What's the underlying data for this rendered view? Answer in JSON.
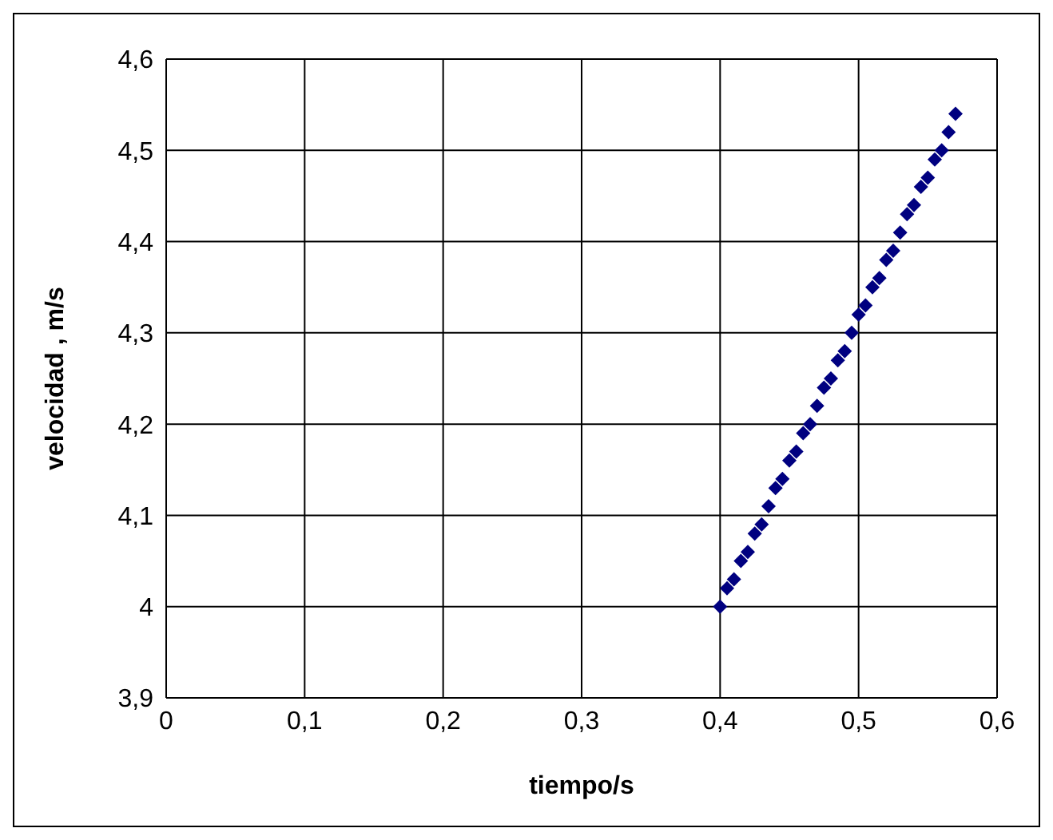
{
  "chart_data": {
    "type": "scatter",
    "xlabel": "tiempo/s",
    "ylabel": "velocidad , m/s",
    "x": [
      0.4,
      0.405,
      0.41,
      0.415,
      0.42,
      0.425,
      0.43,
      0.435,
      0.44,
      0.445,
      0.45,
      0.455,
      0.46,
      0.465,
      0.47,
      0.475,
      0.48,
      0.485,
      0.49,
      0.495,
      0.5,
      0.505,
      0.51,
      0.515,
      0.52,
      0.525,
      0.53,
      0.535,
      0.54,
      0.545,
      0.55,
      0.555,
      0.56,
      0.565,
      0.57
    ],
    "series": [
      {
        "color": "#000080",
        "values": [
          4.0,
          4.02,
          4.03,
          4.05,
          4.06,
          4.08,
          4.09,
          4.11,
          4.13,
          4.14,
          4.16,
          4.17,
          4.19,
          4.2,
          4.22,
          4.24,
          4.25,
          4.27,
          4.28,
          4.3,
          4.32,
          4.33,
          4.35,
          4.36,
          4.38,
          4.39,
          4.41,
          4.43,
          4.44,
          4.46,
          4.47,
          4.49,
          4.5,
          4.52,
          4.54
        ]
      }
    ],
    "xlim": [
      0,
      0.6
    ],
    "xticks": [
      0,
      {
        "value": 0.1,
        "label": "0,1"
      },
      {
        "value": 0.2,
        "label": "0,2"
      },
      {
        "value": 0.3,
        "label": "0,3"
      },
      {
        "value": 0.4,
        "label": "0,4"
      },
      {
        "value": 0.5,
        "label": "0,5"
      },
      {
        "value": 0.6,
        "label": "0,6"
      }
    ],
    "ylim": [
      3.9,
      4.6
    ],
    "yticks": [
      {
        "value": 3.9,
        "label": "3,9"
      },
      4,
      {
        "value": 4.1,
        "label": "4,1"
      },
      {
        "value": 4.2,
        "label": "4,2"
      },
      {
        "value": 4.3,
        "label": "4,3"
      },
      {
        "value": 4.4,
        "label": "4,4"
      },
      {
        "value": 4.5,
        "label": "4,5"
      },
      {
        "value": 4.6,
        "label": "4,6"
      }
    ],
    "grid": true,
    "marker": "diamond",
    "legend": false
  }
}
